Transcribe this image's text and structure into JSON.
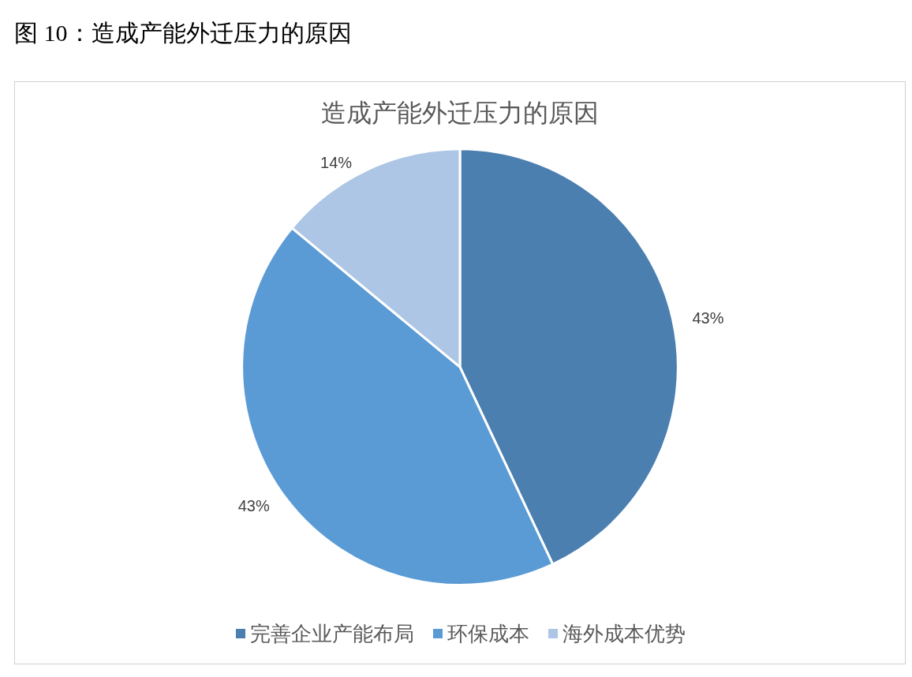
{
  "chart_data": {
    "type": "pie",
    "title": "造成产能外迁压力的原因",
    "annotations": [
      "图 10：造成产能外迁压力的原因"
    ],
    "categories": [
      "完善企业产能布局",
      "环保成本",
      "海外成本优势"
    ],
    "values": [
      43,
      43,
      14
    ],
    "colors": [
      "#4a7fb0",
      "#5b9bd5",
      "#adc6e5"
    ],
    "value_labels": [
      "43%",
      "43%",
      "14%"
    ],
    "legend": "bottom"
  }
}
